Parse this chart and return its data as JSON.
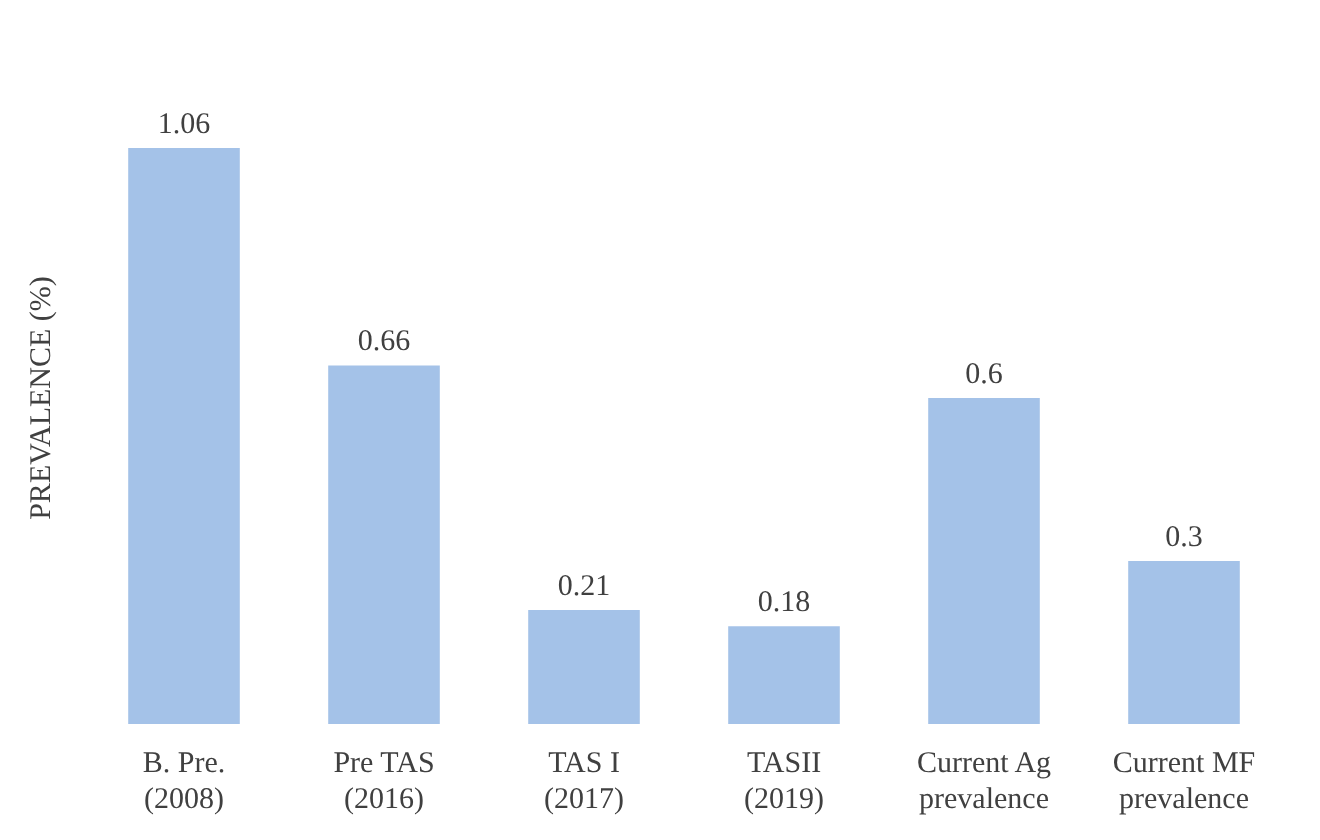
{
  "chart_data": {
    "type": "bar",
    "ylabel": "PREVALENCE (%)",
    "categories": [
      "B. Pre.\n(2008)",
      "Pre TAS\n(2016)",
      "TAS I\n(2017)",
      "TASII\n(2019)",
      "Current Ag\nprevalence",
      "Current MF\nprevalence"
    ],
    "values": [
      1.06,
      0.66,
      0.21,
      0.18,
      0.6,
      0.3
    ],
    "color": "#a4c2e8",
    "data_labels": true,
    "tick_labels": "x",
    "grid": false,
    "legend": false
  }
}
